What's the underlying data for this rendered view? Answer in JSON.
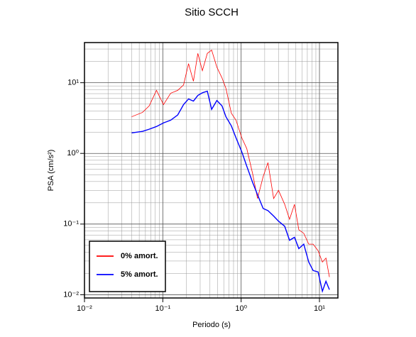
{
  "chart_data": {
    "type": "line",
    "title": "Sitio SCCH",
    "x_label": "Periodo (s)",
    "y_label": "PSA (cm/s²)",
    "log_x": true,
    "log_y": true,
    "grid": true,
    "legend_position": "lower left",
    "xlim": [
      0.01,
      17.2
    ],
    "ylim": [
      0.009,
      37
    ],
    "xticks": [
      {
        "value": 0.01,
        "label": "10⁻²"
      },
      {
        "value": 0.1,
        "label": "10⁻¹"
      },
      {
        "value": 1,
        "label": "10⁰"
      },
      {
        "value": 10,
        "label": "10¹"
      }
    ],
    "yticks": [
      {
        "value": 0.01,
        "label": "10⁻²"
      },
      {
        "value": 0.1,
        "label": "10⁻¹"
      },
      {
        "value": 1,
        "label": "10⁰"
      },
      {
        "value": 10,
        "label": "10¹"
      }
    ],
    "x": [
      0.04,
      0.055,
      0.067,
      0.083,
      0.102,
      0.126,
      0.155,
      0.184,
      0.213,
      0.246,
      0.28,
      0.32,
      0.37,
      0.42,
      0.49,
      0.57,
      0.64,
      0.75,
      0.86,
      1.02,
      1.18,
      1.4,
      1.62,
      1.91,
      2.2,
      2.6,
      3.0,
      3.6,
      4.15,
      4.8,
      5.45,
      6.3,
      7.3,
      8.3,
      9.6,
      10.9,
      12.1,
      13.4
    ],
    "series": [
      {
        "name": "0% amort.",
        "color": "#ff0000",
        "width": 0.8,
        "values": [
          3.3,
          3.8,
          4.7,
          7.8,
          4.9,
          7.1,
          7.8,
          9.3,
          18.6,
          10.5,
          26,
          14.8,
          26,
          29,
          16.6,
          11.7,
          8.3,
          3.7,
          2.95,
          1.66,
          1.17,
          0.52,
          0.23,
          0.47,
          0.74,
          0.23,
          0.3,
          0.19,
          0.117,
          0.19,
          0.083,
          0.074,
          0.052,
          0.052,
          0.042,
          0.029,
          0.033,
          0.0178
        ]
      },
      {
        "name": "5% amort.",
        "color": "#0000ff",
        "width": 1.4,
        "values": [
          1.95,
          2.05,
          2.2,
          2.4,
          2.7,
          2.95,
          3.5,
          4.9,
          5.9,
          5.5,
          6.6,
          7.2,
          7.6,
          4.2,
          5.6,
          4.7,
          3.3,
          2.45,
          1.66,
          1.05,
          0.66,
          0.39,
          0.26,
          0.166,
          0.155,
          0.13,
          0.11,
          0.093,
          0.059,
          0.065,
          0.045,
          0.052,
          0.029,
          0.022,
          0.021,
          0.0112,
          0.0155,
          0.0118
        ]
      }
    ]
  }
}
